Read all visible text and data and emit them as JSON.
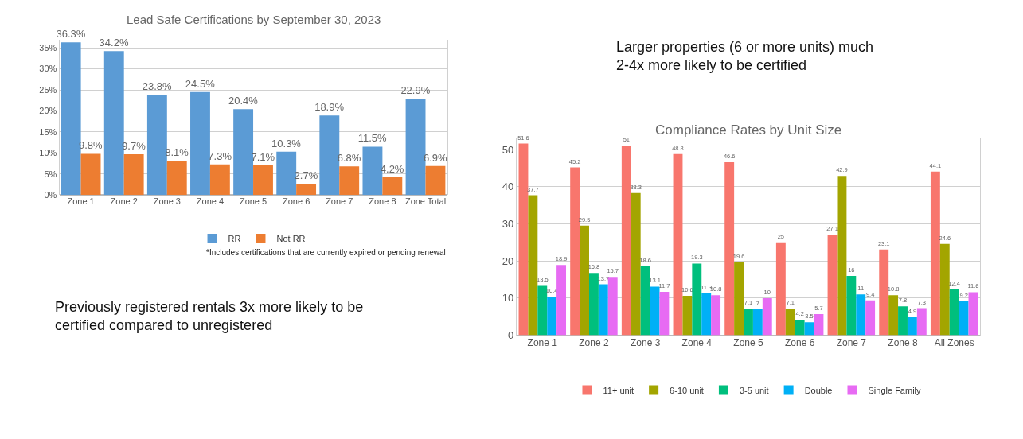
{
  "chart_data": [
    {
      "type": "bar",
      "title": "Lead Safe Certifications by September 30, 2023",
      "categories": [
        "Zone 1",
        "Zone 2",
        "Zone 3",
        "Zone 4",
        "Zone 5",
        "Zone 6",
        "Zone 7",
        "Zone 8",
        "Zone Total"
      ],
      "series": [
        {
          "name": "RR",
          "color": "#5b9bd5",
          "values": [
            36.3,
            34.2,
            23.8,
            24.5,
            20.4,
            10.3,
            18.9,
            11.5,
            22.9
          ],
          "value_labels": [
            "36.3%",
            "34.2%",
            "23.8%",
            "24.5%",
            "20.4%",
            "10.3%",
            "18.9%",
            "11.5%",
            "22.9%"
          ]
        },
        {
          "name": "Not RR",
          "color": "#ed7d31",
          "values": [
            9.8,
            9.7,
            8.1,
            7.3,
            7.1,
            2.7,
            6.8,
            4.2,
            6.9
          ],
          "value_labels": [
            "9.8%",
            "9.7%",
            "8.1%",
            "7.3%",
            "7.1%",
            "2.7%",
            "6.8%",
            "4.2%",
            "6.9%"
          ]
        }
      ],
      "ylim": [
        0,
        37
      ],
      "yticks": [
        {
          "value": 0,
          "label": "0%"
        },
        {
          "value": 5,
          "label": "5%"
        },
        {
          "value": 10,
          "label": "10%"
        },
        {
          "value": 15,
          "label": "15%"
        },
        {
          "value": 20,
          "label": "20%"
        },
        {
          "value": 25,
          "label": "25%"
        },
        {
          "value": 30,
          "label": "30%"
        },
        {
          "value": 35,
          "label": "35%"
        }
      ],
      "grid": "y",
      "legend": "bottom",
      "annotations": [
        "*Includes certifications that are currently expired or pending renewal",
        "Previously registered rentals 3x more likely to be certified compared to unregistered"
      ]
    },
    {
      "type": "bar",
      "title": "Compliance Rates by Unit Size",
      "categories": [
        "Zone 1",
        "Zone 2",
        "Zone 3",
        "Zone 4",
        "Zone 5",
        "Zone 6",
        "Zone 7",
        "Zone 8",
        "All Zones"
      ],
      "series": [
        {
          "name": "11+ unit",
          "color": "#f8766d",
          "values": [
            51.6,
            45.2,
            51,
            48.8,
            46.6,
            25,
            27.1,
            23.1,
            44.1
          ]
        },
        {
          "name": "6-10 unit",
          "color": "#a3a500",
          "values": [
            37.7,
            29.5,
            38.3,
            10.6,
            19.6,
            7.1,
            42.9,
            10.8,
            24.6
          ]
        },
        {
          "name": "3-5 unit",
          "color": "#00bf7d",
          "values": [
            13.5,
            16.8,
            18.6,
            19.3,
            7.1,
            4.2,
            16,
            7.8,
            12.4
          ]
        },
        {
          "name": "Double",
          "color": "#00b0f6",
          "values": [
            10.4,
            13.7,
            13.1,
            11.3,
            7,
            3.5,
            11,
            4.9,
            9.2
          ]
        },
        {
          "name": "Single Family",
          "color": "#e76bf3",
          "values": [
            18.9,
            15.7,
            11.7,
            10.8,
            10,
            5.7,
            9.4,
            7.3,
            11.6
          ]
        }
      ],
      "ylim": [
        0,
        53
      ],
      "yticks": [
        0,
        10,
        20,
        30,
        40,
        50
      ],
      "grid": "y",
      "legend": "bottom",
      "data_labels": true,
      "annotations": [
        "Larger properties (6 or more units) much 2-4x more likely to be certified"
      ]
    }
  ]
}
